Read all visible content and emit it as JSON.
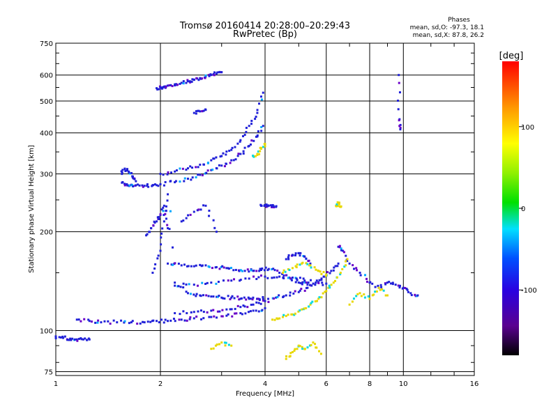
{
  "chart_data": {
    "type": "scatter",
    "title": "Tromsø 20160414 20:28:00–20:29:43",
    "subtitle": "RwPretec (Bp)",
    "xlabel": "Frequency [MHz]",
    "ylabel": "Stationary phase Virtual Height [km]",
    "x_scale": "log",
    "y_scale": "log",
    "xlim": [
      1,
      16
    ],
    "ylim": [
      73,
      750
    ],
    "x_ticks": [
      1,
      2,
      4,
      6,
      8,
      10,
      16
    ],
    "x_tick_labels": [
      "1",
      "2",
      "4",
      "6",
      "8",
      "10",
      "16"
    ],
    "y_ticks": [
      75,
      100,
      200,
      300,
      400,
      500,
      600,
      750
    ],
    "y_tick_labels": [
      "75",
      "100",
      "200",
      "300",
      "400",
      "500",
      "600",
      "750"
    ],
    "grid": true,
    "stats": {
      "header": "Phases",
      "line_o": "mean, sd,O: -97.3, 18.1",
      "line_x": "mean, sd,X:  87.8, 26.2"
    },
    "colorbar": {
      "label": "[deg]",
      "min": -180,
      "max": 180,
      "tick_values": [
        100,
        0,
        -100
      ],
      "tick_labels": [
        "100",
        "0",
        "-100"
      ],
      "colormap": "rainbow (black-purple-blue-cyan-green-yellow-orange-red)"
    },
    "colors": {
      "o_mode": "#2020d8",
      "x_mode": "#e8d800",
      "grid": "#000000"
    },
    "traces": [
      {
        "mode": "O",
        "x": [
          1.0,
          1.05,
          1.1,
          1.15,
          1.2,
          1.25
        ],
        "y": [
          96,
          95,
          94.5,
          94,
          94,
          94
        ]
      },
      {
        "mode": "O",
        "x": [
          1.15,
          1.25,
          1.35,
          1.5,
          1.65,
          1.8,
          1.95,
          2.1,
          2.3,
          2.5,
          2.8,
          3.1,
          3.4,
          3.7,
          4.0
        ],
        "y": [
          108,
          107,
          106,
          106,
          106,
          106,
          107,
          107,
          108,
          109,
          110,
          111,
          113,
          115,
          117
        ]
      },
      {
        "mode": "O",
        "x": [
          2.2,
          2.5,
          2.8,
          3.1,
          3.4,
          3.7,
          4.0,
          4.3,
          4.6,
          5.0,
          5.3,
          5.6,
          5.9,
          6.2,
          6.5
        ],
        "y": [
          113,
          114,
          115,
          116,
          118,
          120,
          123,
          126,
          128,
          131,
          135,
          140,
          146,
          152,
          160
        ]
      },
      {
        "mode": "O",
        "x": [
          1.9,
          2.0,
          2.05,
          2.1,
          2.2,
          2.4,
          2.6,
          2.8,
          3.0,
          3.2,
          3.4,
          3.6,
          3.8,
          3.95
        ],
        "y": [
          150,
          175,
          215,
          260,
          140,
          130,
          128,
          127,
          126,
          126,
          125,
          125,
          125,
          125
        ]
      },
      {
        "mode": "O",
        "x": [
          2.1,
          2.3,
          2.5,
          2.7,
          2.9,
          3.1,
          3.3,
          3.5,
          3.7,
          3.9,
          4.1,
          4.4,
          4.7,
          5.0,
          5.3
        ],
        "y": [
          160,
          158,
          157,
          158,
          156,
          155,
          153,
          152,
          152,
          153,
          154,
          150,
          145,
          140,
          138
        ]
      },
      {
        "mode": "O",
        "x": [
          2.2,
          2.5,
          2.8,
          3.2,
          3.6,
          4.0,
          4.4,
          4.8,
          5.2,
          5.6,
          6.0
        ],
        "y": [
          137,
          138,
          140,
          142,
          144,
          146,
          146,
          145,
          142,
          140,
          139
        ]
      },
      {
        "mode": "O",
        "x": [
          1.82,
          1.88,
          1.95,
          2.0,
          2.05,
          2.1
        ],
        "y": [
          195,
          205,
          215,
          225,
          240,
          205
        ]
      },
      {
        "mode": "O",
        "x": [
          2.3,
          2.5,
          2.7,
          2.9
        ],
        "y": [
          215,
          230,
          240,
          200
        ]
      },
      {
        "mode": "O",
        "x": [
          1.55,
          1.6,
          1.65,
          1.7,
          1.8,
          1.9,
          2.0,
          2.2,
          2.4,
          2.6,
          2.8,
          3.0,
          3.2,
          3.4,
          3.6,
          3.8,
          3.95
        ],
        "y": [
          282,
          279,
          278,
          277,
          276,
          277,
          279,
          283,
          290,
          298,
          308,
          318,
          330,
          345,
          365,
          390,
          420
        ]
      },
      {
        "mode": "O",
        "x": [
          1.55,
          1.58,
          1.62,
          1.66,
          1.7
        ],
        "y": [
          300,
          310,
          305,
          295,
          285
        ]
      },
      {
        "mode": "O",
        "x": [
          2.0,
          2.2,
          2.4,
          2.6,
          2.8,
          3.0,
          3.2,
          3.4,
          3.6,
          3.8,
          3.95
        ],
        "y": [
          300,
          305,
          312,
          320,
          330,
          340,
          355,
          380,
          420,
          460,
          530
        ]
      },
      {
        "mode": "O",
        "x": [
          1.95,
          2.0,
          2.05,
          2.1,
          2.2,
          2.3,
          2.4,
          2.5,
          2.6,
          2.7,
          2.8,
          2.9,
          3.0
        ],
        "y": [
          547,
          550,
          553,
          557,
          562,
          568,
          574,
          580,
          587,
          594,
          600,
          606,
          612
        ]
      },
      {
        "mode": "O",
        "x": [
          2.5,
          2.6,
          2.7
        ],
        "y": [
          460,
          465,
          470
        ]
      },
      {
        "mode": "O",
        "x": [
          3.9,
          4.0,
          4.1,
          4.2,
          4.3
        ],
        "y": [
          240,
          241,
          240,
          239,
          238
        ]
      },
      {
        "mode": "O",
        "x": [
          4.6,
          4.8,
          5.0,
          5.2,
          5.4
        ],
        "y": [
          165,
          170,
          172,
          168,
          160
        ]
      },
      {
        "mode": "O",
        "x": [
          6.5,
          6.7,
          7.0,
          7.5,
          8.0,
          8.5,
          9.0,
          9.5,
          10.0,
          10.5,
          11.0
        ],
        "y": [
          180,
          175,
          160,
          150,
          140,
          135,
          140,
          138,
          135,
          130,
          128
        ]
      },
      {
        "mode": "O",
        "x": [
          9.7,
          9.75,
          9.8
        ],
        "y": [
          600,
          440,
          410
        ]
      },
      {
        "mode": "X",
        "x": [
          4.2,
          4.5,
          4.8,
          5.1,
          5.4,
          5.7,
          6.0,
          6.3,
          6.6,
          6.9
        ],
        "y": [
          108,
          110,
          112,
          116,
          120,
          125,
          132,
          140,
          150,
          165
        ]
      },
      {
        "mode": "X",
        "x": [
          4.5,
          4.8,
          5.1,
          5.4,
          5.7,
          6.0
        ],
        "y": [
          150,
          155,
          160,
          158,
          152,
          148
        ]
      },
      {
        "mode": "X",
        "x": [
          3.7,
          3.8,
          3.9,
          4.0
        ],
        "y": [
          340,
          345,
          360,
          370
        ]
      },
      {
        "mode": "X",
        "x": [
          6.4,
          6.5,
          6.6
        ],
        "y": [
          240,
          245,
          238
        ]
      },
      {
        "mode": "X",
        "x": [
          4.6,
          4.8,
          5.0,
          5.2,
          5.5,
          5.8
        ],
        "y": [
          82,
          86,
          90,
          88,
          92,
          85
        ]
      },
      {
        "mode": "X",
        "x": [
          7.0,
          7.5,
          8.0,
          8.5,
          9.0
        ],
        "y": [
          120,
          130,
          125,
          135,
          128
        ]
      },
      {
        "mode": "X",
        "x": [
          2.8,
          3.0,
          3.2
        ],
        "y": [
          88,
          92,
          90
        ]
      }
    ]
  }
}
